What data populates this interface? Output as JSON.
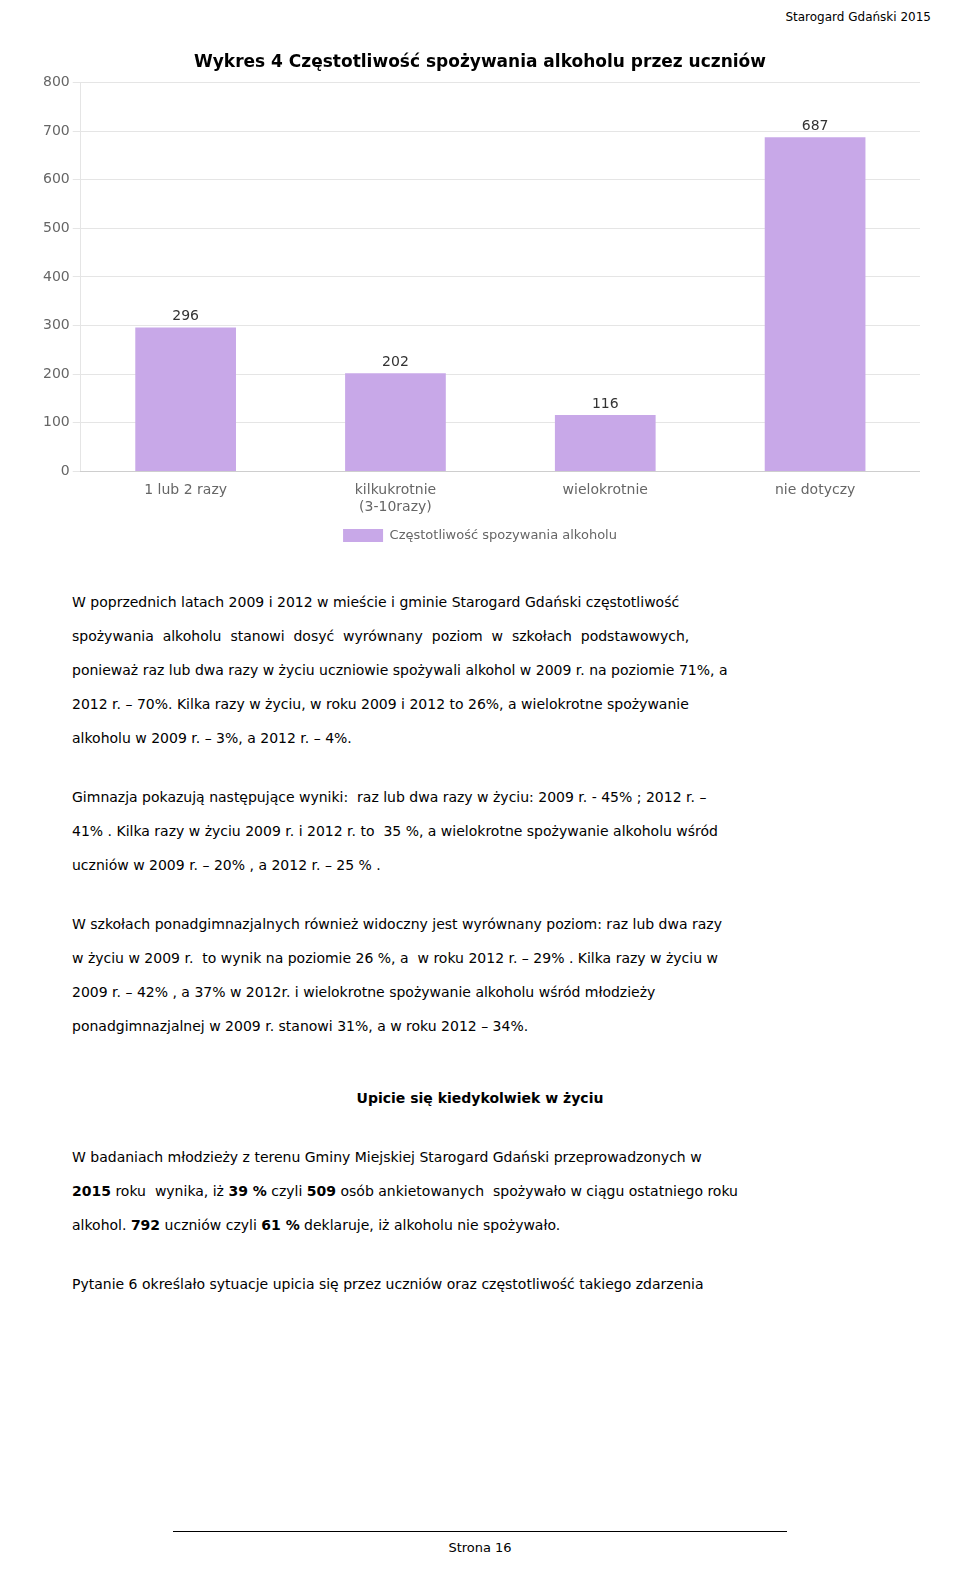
{
  "title_top_right": "Starogard Gdański  2015",
  "chart_data": {
    "type": "bar",
    "title": "Wykres 4 Częstotliwość spożywania alkoholu przez uczniów",
    "categories": [
      "1 lub 2 razy",
      "kilkukrotnie\n(3-10razy)",
      "wielokrotnie",
      "nie dotyczy"
    ],
    "series": [
      {
        "name": "Częstotliwość spozywania alkoholu",
        "color": "#c8a8e8",
        "values": [
          296,
          202,
          116,
          687
        ]
      }
    ],
    "ylim": [
      0,
      800
    ],
    "yticks": [
      0,
      100,
      200,
      300,
      400,
      500,
      600,
      700,
      800
    ],
    "grid": true,
    "legend": "bottom",
    "data_labels": true
  },
  "paragraphs": [
    [
      "W poprzednich latach 2009 i 2012 w mieście i gminie Starogard Gdański częstotliwość",
      "spożywania  alkoholu  stanowi  dosyć  wyrównany  poziom  w  szkołach  podstawowych,",
      "ponieważ raz lub dwa razy w życiu uczniowie spożywali alkohol w 2009 r. na poziomie 71%, a",
      "2012 r. – 70%. Kilka razy w życiu, w roku 2009 i 2012 to 26%, a wielokrotne spożywanie",
      "alkoholu w 2009 r. – 3%, a 2012 r. – 4%."
    ],
    [
      "Gimnazja pokazują następujące wyniki:  raz lub dwa razy w życiu: 2009 r. - 45% ; 2012 r. –",
      "41% . Kilka razy w życiu 2009 r. i 2012 r. to  35 %, a wielokrotne spożywanie alkoholu wśród",
      "uczniów w 2009 r. – 20% , a 2012 r. – 25 % ."
    ],
    [
      "W szkołach ponadgimnazjalnych również widoczny jest wyrównany poziom: raz lub dwa razy",
      "w życiu w 2009 r.  to wynik na poziomie 26 %, a  w roku 2012 r. – 29% . Kilka razy w życiu w",
      "2009 r. – 42% , a 37% w 2012r. i wielokrotne spożywanie alkoholu wśród młodzieży",
      "ponadgimnazjalnej w 2009 r. stanowi 31%, a w roku 2012 – 34%."
    ]
  ],
  "section_heading": "Upicie się kiedykolwiek w życiu",
  "para5": [
    [
      {
        "text": "W badaniach młodzieży z terenu Gminy Miejskiej Starogard Gdański przeprowadzonych w",
        "bold": false
      }
    ],
    [
      {
        "text": "2015",
        "bold": true
      },
      {
        "text": " roku  wynika, iż ",
        "bold": false
      },
      {
        "text": "39 %",
        "bold": true
      },
      {
        "text": " czyli ",
        "bold": false
      },
      {
        "text": "509",
        "bold": true
      },
      {
        "text": " osób ankietowanych  spożywało w ciągu ostatniego roku",
        "bold": false
      }
    ],
    [
      {
        "text": "alkohol. ",
        "bold": false
      },
      {
        "text": "792",
        "bold": true
      },
      {
        "text": " uczniów czyli ",
        "bold": false
      },
      {
        "text": "61 %",
        "bold": true
      },
      {
        "text": " deklaruje, iż alkoholu nie spożywało.",
        "bold": false
      }
    ]
  ],
  "para6": "Pytanie 6 określało sytuacje upicia się przez uczniów oraz częstotliwość takiego zdarzenia",
  "page_number": "Strona 16"
}
